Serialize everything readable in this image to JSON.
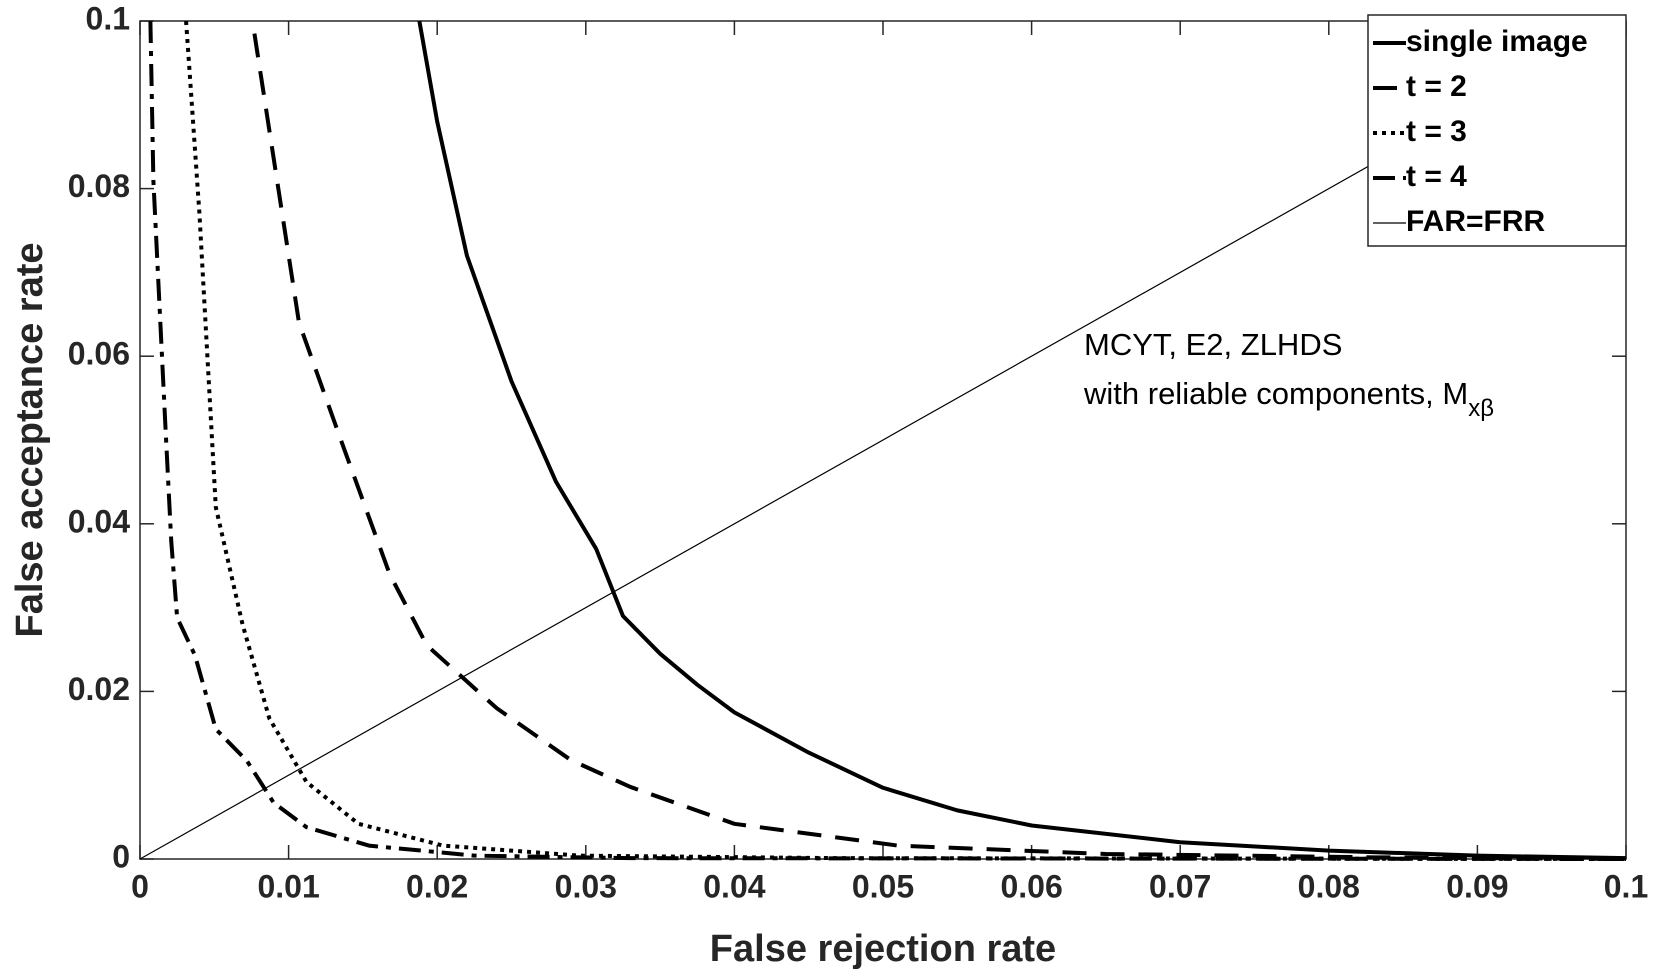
{
  "chart_data": {
    "type": "line",
    "xlabel": "False rejection rate",
    "ylabel": "False acceptance rate",
    "xlim": [
      0,
      0.1
    ],
    "ylim": [
      0,
      0.1
    ],
    "xticks": [
      0,
      0.01,
      0.02,
      0.03,
      0.04,
      0.05,
      0.06,
      0.07,
      0.08,
      0.09,
      0.1
    ],
    "yticks": [
      0,
      0.02,
      0.04,
      0.06,
      0.08,
      0.1
    ],
    "grid": false,
    "legend": "upper right",
    "annotation": {
      "lines": [
        "MCYT, E2, ZLHDS",
        "with reliable components, M"
      ],
      "subscript": "xβ"
    },
    "series": [
      {
        "name": "single image",
        "color": "#000000",
        "linestyle": "solid",
        "x": [
          0.0188,
          0.02,
          0.022,
          0.025,
          0.028,
          0.0307,
          0.0325,
          0.035,
          0.0375,
          0.04,
          0.045,
          0.05,
          0.055,
          0.06,
          0.07,
          0.08,
          0.09,
          0.1
        ],
        "values": [
          0.1,
          0.088,
          0.072,
          0.057,
          0.045,
          0.037,
          0.029,
          0.0245,
          0.0208,
          0.0175,
          0.0127,
          0.0085,
          0.0058,
          0.004,
          0.002,
          0.001,
          0.0004,
          0.0001
        ]
      },
      {
        "name": "t = 2",
        "color": "#000000",
        "linestyle": "dashed",
        "x": [
          0.0077,
          0.0107,
          0.0136,
          0.0168,
          0.0193,
          0.024,
          0.029,
          0.033,
          0.04,
          0.051,
          0.065,
          0.083,
          0.1
        ],
        "values": [
          0.0985,
          0.064,
          0.0496,
          0.034,
          0.0255,
          0.018,
          0.0118,
          0.0086,
          0.0042,
          0.0016,
          0.0006,
          0.0002,
          0
        ]
      },
      {
        "name": "t = 3",
        "color": "#000000",
        "linestyle": "dotted",
        "x": [
          0.0031,
          0.004,
          0.0051,
          0.0069,
          0.0087,
          0.0112,
          0.0147,
          0.0204,
          0.0296,
          0.047,
          0.1
        ],
        "values": [
          0.1,
          0.077,
          0.042,
          0.028,
          0.0168,
          0.0092,
          0.0042,
          0.0016,
          0.0004,
          0.0001,
          0
        ]
      },
      {
        "name": "t = 4",
        "color": "#000000",
        "linestyle": "dashdot",
        "x": [
          0.0007,
          0.0009,
          0.0017,
          0.0021,
          0.0025,
          0.0037,
          0.0051,
          0.0072,
          0.009,
          0.0112,
          0.0154,
          0.0225,
          0.033,
          0.1
        ],
        "values": [
          0.1,
          0.081,
          0.052,
          0.038,
          0.0288,
          0.0243,
          0.0155,
          0.0117,
          0.0067,
          0.0038,
          0.0016,
          0.0004,
          0.0001,
          0
        ]
      },
      {
        "name": "FAR=FRR",
        "color": "#000000",
        "linestyle": "thin",
        "x": [
          0,
          0.1
        ],
        "values": [
          0,
          0.1
        ]
      }
    ]
  }
}
